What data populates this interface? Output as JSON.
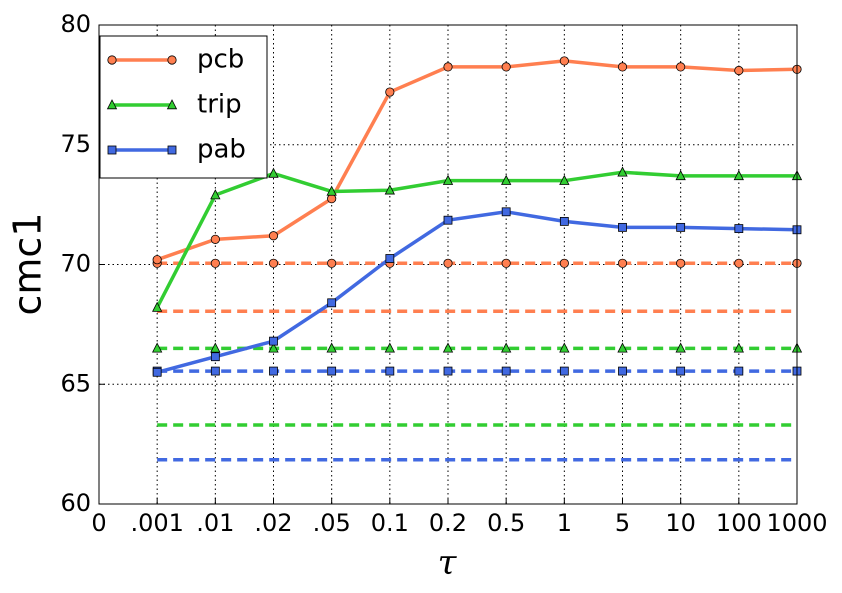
{
  "chart_data": {
    "type": "line",
    "x_label": "τ",
    "y_label": "cmc1",
    "categories": [
      "0",
      ".001",
      ".01",
      ".02",
      ".05",
      "0.1",
      "0.2",
      "0.5",
      "1",
      "5",
      "10",
      "100",
      "1000"
    ],
    "ylim": [
      60,
      80
    ],
    "yticks": [
      60,
      65,
      70,
      75,
      80
    ],
    "grid": true,
    "legend": "upper left",
    "series": [
      {
        "name": "pcb",
        "color": "#ff7f50",
        "marker": "circle",
        "dash": false,
        "values": [
          null,
          70.2,
          71.05,
          71.2,
          72.75,
          77.2,
          78.25,
          78.25,
          78.5,
          78.25,
          78.25,
          78.1,
          78.15
        ]
      },
      {
        "name": "trip",
        "color": "#32cd32",
        "marker": "triangle",
        "dash": false,
        "values": [
          null,
          68.2,
          72.9,
          73.8,
          73.05,
          73.1,
          73.5,
          73.5,
          73.5,
          73.85,
          73.7,
          73.7,
          73.7
        ]
      },
      {
        "name": "pab",
        "color": "#4169e1",
        "marker": "square",
        "dash": false,
        "values": [
          null,
          65.5,
          66.15,
          66.8,
          68.4,
          70.25,
          71.85,
          72.2,
          71.8,
          71.55,
          71.55,
          71.5,
          71.45
        ]
      },
      {
        "color": "#ff7f50",
        "marker": "circle",
        "dash": true,
        "values": [
          null,
          70.05,
          70.05,
          70.05,
          70.05,
          70.05,
          70.05,
          70.05,
          70.05,
          70.05,
          70.05,
          70.05,
          70.05
        ]
      },
      {
        "color": "#ff7f50",
        "dash": true,
        "values": [
          null,
          68.05,
          68.05,
          68.05,
          68.05,
          68.05,
          68.05,
          68.05,
          68.05,
          68.05,
          68.05,
          68.05,
          68.05
        ]
      },
      {
        "color": "#32cd32",
        "marker": "triangle",
        "dash": true,
        "values": [
          null,
          66.5,
          66.5,
          66.5,
          66.5,
          66.5,
          66.5,
          66.5,
          66.5,
          66.5,
          66.5,
          66.5,
          66.5
        ]
      },
      {
        "color": "#32cd32",
        "dash": true,
        "values": [
          null,
          63.3,
          63.3,
          63.3,
          63.3,
          63.3,
          63.3,
          63.3,
          63.3,
          63.3,
          63.3,
          63.3,
          63.3
        ]
      },
      {
        "color": "#4169e1",
        "marker": "square",
        "dash": true,
        "values": [
          null,
          65.55,
          65.55,
          65.55,
          65.55,
          65.55,
          65.55,
          65.55,
          65.55,
          65.55,
          65.55,
          65.55,
          65.55
        ]
      },
      {
        "color": "#4169e1",
        "dash": true,
        "values": [
          null,
          61.85,
          61.85,
          61.85,
          61.85,
          61.85,
          61.85,
          61.85,
          61.85,
          61.85,
          61.85,
          61.85,
          61.85
        ]
      }
    ]
  }
}
